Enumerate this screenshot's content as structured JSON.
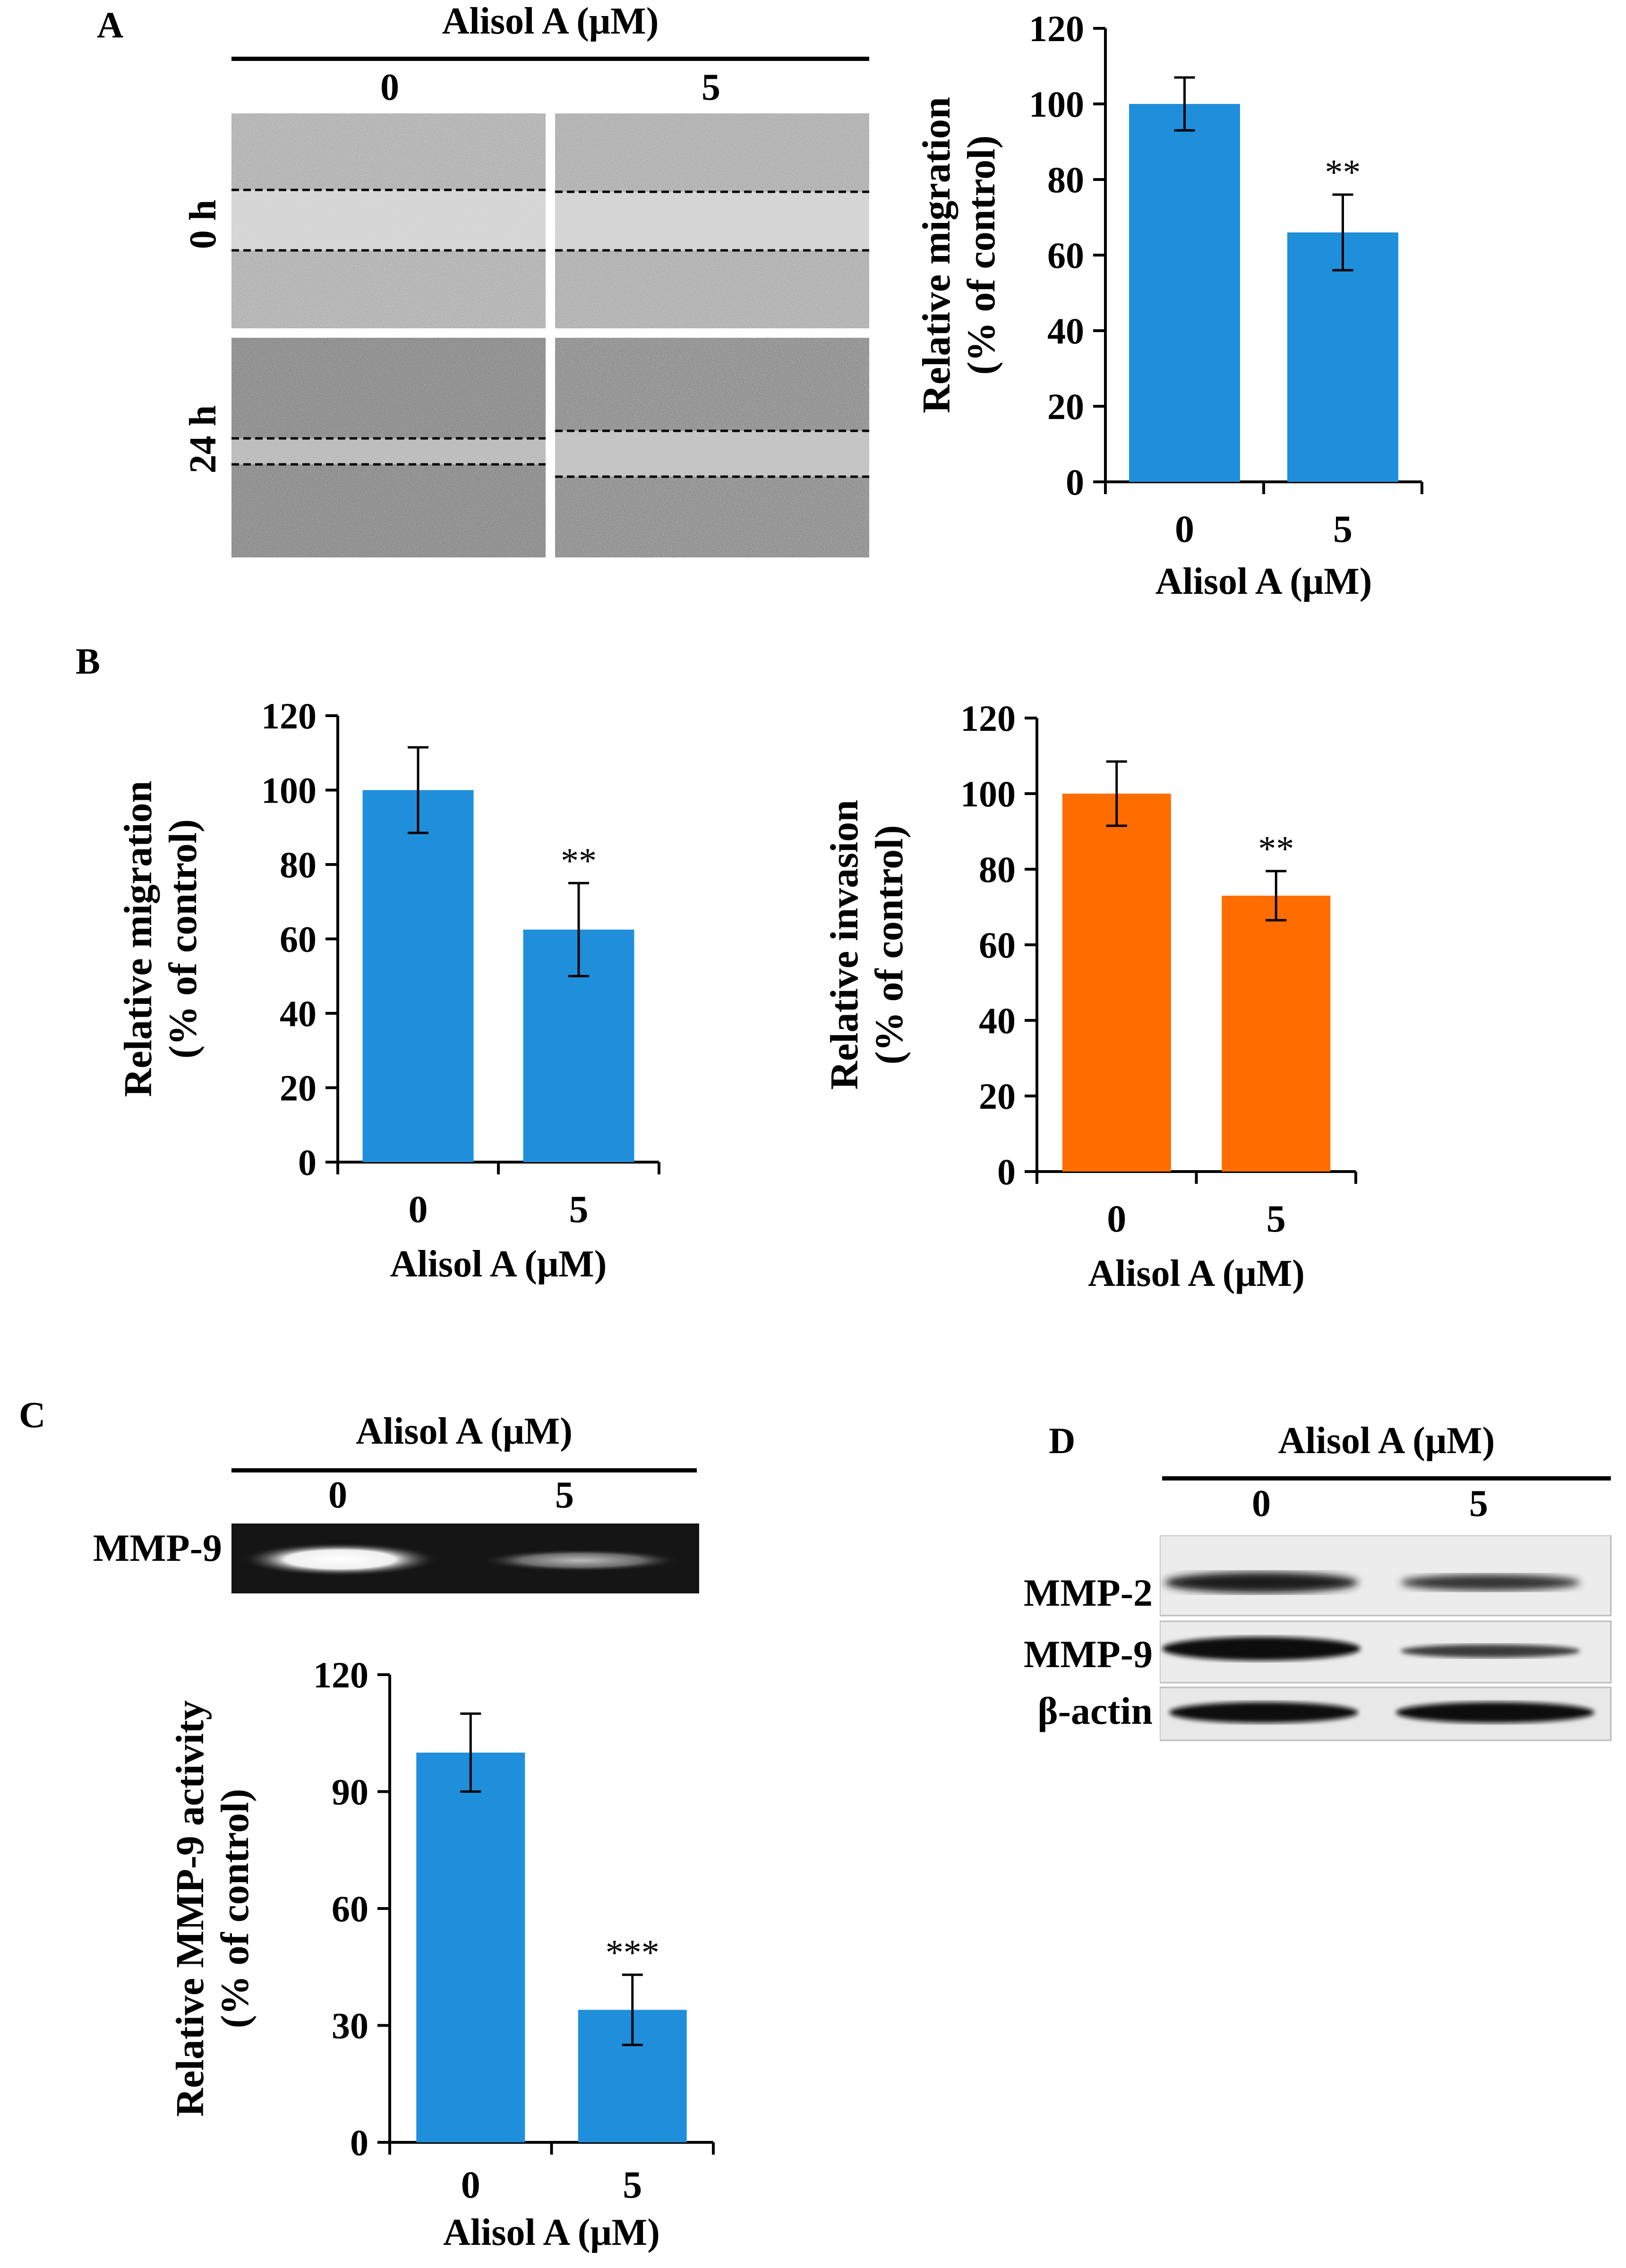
{
  "panel_a": {
    "letter": "A",
    "header": "Alisol A (μM)",
    "col_labels": [
      "0",
      "5"
    ],
    "row_labels": [
      "0 h",
      "24 h"
    ]
  },
  "panel_b": {
    "letter": "B"
  },
  "panel_c": {
    "letter": "C",
    "header": "Alisol A (μM)",
    "col_labels": [
      "0",
      "5"
    ],
    "band_label": "MMP-9"
  },
  "panel_d": {
    "letter": "D",
    "header": "Alisol A (μM)",
    "col_labels": [
      "0",
      "5"
    ],
    "band_labels": [
      "MMP-2",
      "MMP-9",
      "β-actin"
    ]
  },
  "colors": {
    "blue": "#1f8fdc",
    "orange": "#ff6d00"
  },
  "chart_data": [
    {
      "id": "a",
      "type": "bar",
      "categories": [
        "0",
        "5"
      ],
      "values": [
        100,
        66
      ],
      "errors": [
        7,
        10
      ],
      "annotations": [
        "",
        "**"
      ],
      "ylabel": [
        "Relative migration",
        "(% of control)"
      ],
      "xlabel": "Alisol A (μM)",
      "ylim": [
        0,
        120
      ],
      "yticks": [
        0,
        20,
        40,
        60,
        80,
        100,
        120
      ],
      "color": "#1f8fdc"
    },
    {
      "id": "b1",
      "type": "bar",
      "categories": [
        "0",
        "5"
      ],
      "values": [
        100,
        62.5
      ],
      "errors": [
        11.5,
        12.5
      ],
      "annotations": [
        "",
        "**"
      ],
      "ylabel": [
        "Relative migration",
        "(% of control)"
      ],
      "xlabel": "Alisol A (μM)",
      "ylim": [
        0,
        120
      ],
      "yticks": [
        0,
        20,
        40,
        60,
        80,
        100,
        120
      ],
      "color": "#1f8fdc"
    },
    {
      "id": "b2",
      "type": "bar",
      "categories": [
        "0",
        "5"
      ],
      "values": [
        100,
        73
      ],
      "errors": [
        8.5,
        6.5
      ],
      "annotations": [
        "",
        "**"
      ],
      "ylabel": [
        "Relative invasion",
        "(% of control)"
      ],
      "xlabel": "Alisol A (μM)",
      "ylim": [
        0,
        120
      ],
      "yticks": [
        0,
        20,
        40,
        60,
        80,
        100,
        120
      ],
      "color": "#ff6d00"
    },
    {
      "id": "c",
      "type": "bar",
      "categories": [
        "0",
        "5"
      ],
      "values": [
        100,
        34
      ],
      "errors": [
        10,
        9
      ],
      "annotations": [
        "",
        "***"
      ],
      "ylabel": [
        "Relative MMP-9 activity",
        "(% of control)"
      ],
      "xlabel": "Alisol A (μM)",
      "ylim": [
        0,
        120
      ],
      "yticks": [
        0,
        30,
        60,
        90,
        120
      ],
      "color": "#1f8fdc"
    }
  ]
}
